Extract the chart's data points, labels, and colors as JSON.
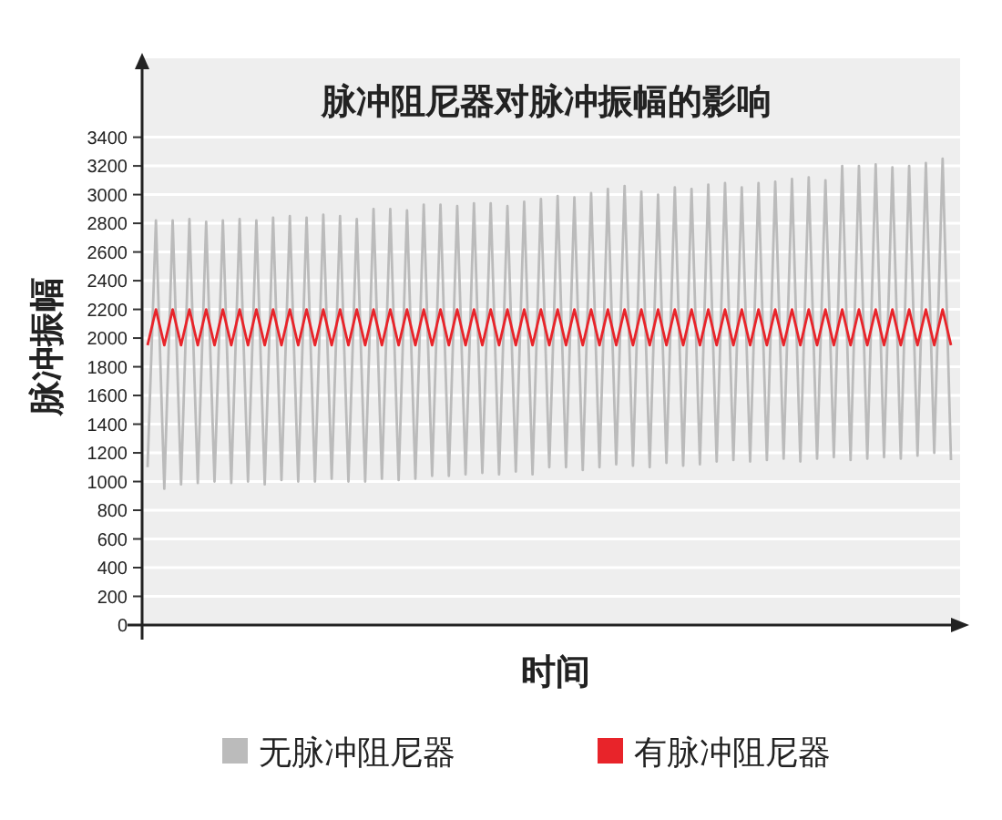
{
  "chart_data": {
    "type": "line",
    "title": "脉冲阻尼器对脉冲振幅的影响",
    "xlabel": "时间",
    "ylabel": "脉冲振幅",
    "categories": [
      null,
      null,
      null,
      null,
      null,
      null,
      null,
      null,
      null,
      null,
      null,
      null,
      null,
      null,
      null,
      null,
      null,
      null,
      null,
      null,
      null,
      null,
      null,
      null,
      null,
      null,
      null,
      null,
      null,
      null,
      null,
      null,
      null,
      null,
      null,
      null,
      null,
      null,
      null,
      null,
      null,
      null,
      null,
      null,
      null,
      null,
      null,
      null,
      null,
      null,
      null,
      null,
      null,
      null,
      null,
      null,
      null,
      null,
      null,
      null,
      null,
      null,
      null,
      null,
      null,
      null,
      null,
      null,
      null,
      null,
      null,
      null,
      null,
      null,
      null,
      null,
      null,
      null,
      null,
      null,
      null,
      null,
      null,
      null,
      null,
      null,
      null,
      null,
      null,
      null,
      null,
      null,
      null,
      null,
      null,
      null,
      null
    ],
    "ylim": [
      0,
      3950
    ],
    "yticks": [
      0,
      200,
      400,
      600,
      800,
      1000,
      1200,
      1400,
      1600,
      1800,
      2000,
      2200,
      2400,
      2600,
      2800,
      3000,
      3200,
      3400
    ],
    "grid": "y",
    "legend": "bottom",
    "series": [
      {
        "name": "无脉冲阻尼器",
        "color": "#bbbbbb",
        "values": [
          1100,
          2820,
          950,
          2820,
          980,
          2830,
          990,
          2810,
          1000,
          2820,
          990,
          2830,
          1000,
          2820,
          980,
          2840,
          1010,
          2850,
          1000,
          2840,
          1000,
          2860,
          1020,
          2850,
          1000,
          2830,
          1000,
          2900,
          1020,
          2900,
          1010,
          2890,
          1020,
          2930,
          1040,
          2930,
          1040,
          2920,
          1050,
          2940,
          1060,
          2940,
          1050,
          2920,
          1070,
          2950,
          1050,
          2970,
          1100,
          2990,
          1100,
          2980,
          1080,
          3010,
          1100,
          3040,
          1120,
          3060,
          1110,
          3020,
          1100,
          3000,
          1130,
          3050,
          1110,
          3040,
          1120,
          3070,
          1140,
          3080,
          1150,
          3050,
          1140,
          3080,
          1150,
          3090,
          1160,
          3110,
          1140,
          3120,
          1160,
          3100,
          1170,
          3200,
          1150,
          3200,
          1160,
          3210,
          1170,
          3190,
          1160,
          3200,
          1180,
          3220,
          1200,
          3250,
          1150
        ]
      },
      {
        "name": "有脉冲阻尼器",
        "color": "#e8242a",
        "values": [
          1950,
          2200,
          1950,
          2200,
          1950,
          2200,
          1950,
          2200,
          1950,
          2200,
          1950,
          2200,
          1950,
          2200,
          1950,
          2200,
          1950,
          2200,
          1950,
          2200,
          1950,
          2200,
          1950,
          2200,
          1950,
          2200,
          1950,
          2200,
          1950,
          2200,
          1950,
          2200,
          1950,
          2200,
          1950,
          2200,
          1950,
          2200,
          1950,
          2200,
          1950,
          2200,
          1950,
          2200,
          1950,
          2200,
          1950,
          2200,
          1950,
          2200,
          1950,
          2200,
          1950,
          2200,
          1950,
          2200,
          1950,
          2200,
          1950,
          2200,
          1950,
          2200,
          1950,
          2200,
          1950,
          2200,
          1950,
          2200,
          1950,
          2200,
          1950,
          2200,
          1950,
          2200,
          1950,
          2200,
          1950,
          2200,
          1950,
          2200,
          1950,
          2200,
          1950,
          2200,
          1950,
          2200,
          1950,
          2200,
          1950,
          2200,
          1950,
          2200,
          1950,
          2200,
          1950,
          2200,
          1950
        ]
      }
    ]
  }
}
